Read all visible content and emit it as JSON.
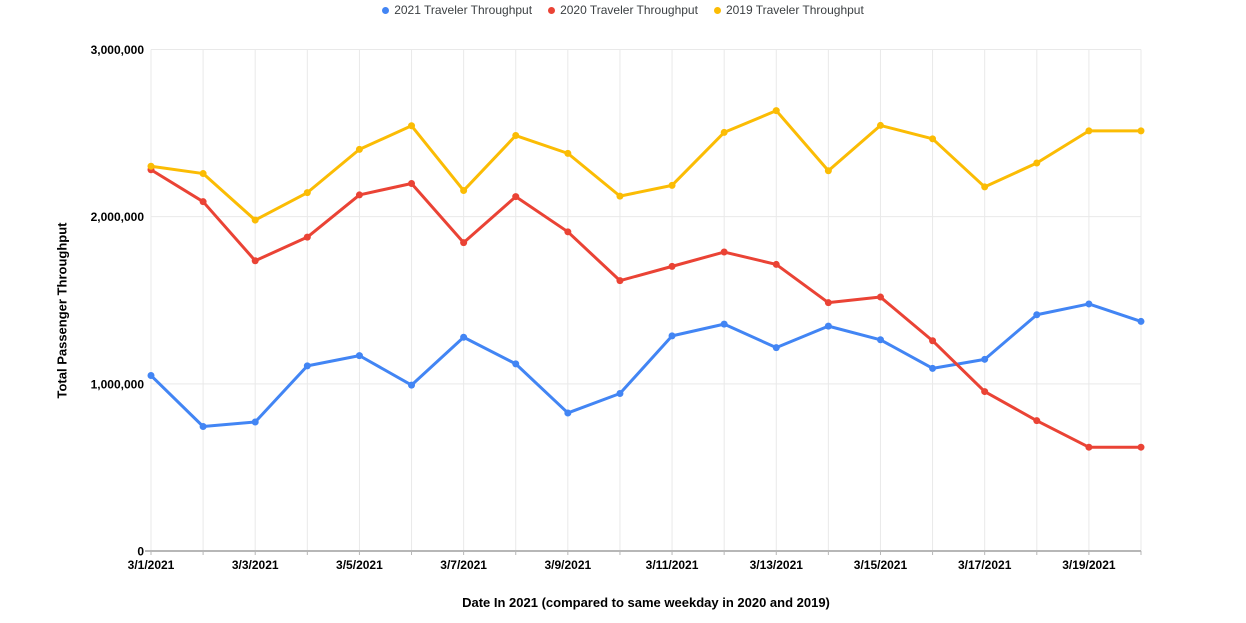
{
  "chart_data": {
    "type": "line",
    "title": "",
    "xlabel": "Date In 2021 (compared to same weekday in 2020 and 2019)",
    "ylabel": "Total Passenger Throughput",
    "x": [
      "3/1/2021",
      "3/2/2021",
      "3/3/2021",
      "3/4/2021",
      "3/5/2021",
      "3/6/2021",
      "3/7/2021",
      "3/8/2021",
      "3/9/2021",
      "3/10/2021",
      "3/11/2021",
      "3/12/2021",
      "3/13/2021",
      "3/14/2021",
      "3/15/2021",
      "3/16/2021",
      "3/17/2021",
      "3/18/2021",
      "3/19/2021",
      "3/20/2021"
    ],
    "x_tick_labels": [
      "3/1/2021",
      "3/3/2021",
      "3/5/2021",
      "3/7/2021",
      "3/9/2021",
      "3/11/2021",
      "3/13/2021",
      "3/15/2021",
      "3/17/2021",
      "3/19/2021"
    ],
    "x_tick_step": 2,
    "y_ticks": [
      0,
      1000000,
      2000000,
      3000000
    ],
    "y_tick_labels": [
      "0",
      "1,000,000",
      "2,000,000",
      "3,000,000"
    ],
    "ylim": [
      0,
      3000000
    ],
    "grid": true,
    "legend_position": "top",
    "series": [
      {
        "name": "2021 Traveler Throughput",
        "color": "#4285F4",
        "values": [
          1049692,
          744812,
          771882,
          1107534,
          1168734,
          992406,
          1278557,
          1119303,
          825745,
          942333,
          1286894,
          1357111,
          1216469,
          1345284,
          1263620,
          1092548,
          1146539,
          1413141,
          1477841,
          1373259
        ]
      },
      {
        "name": "2020 Traveler Throughput",
        "color": "#EA4335",
        "values": [
          2280522,
          2089641,
          1736393,
          1877401,
          2130015,
          2198517,
          1844811,
          2119867,
          1909363,
          1617220,
          1702686,
          1788456,
          1714372,
          1485553,
          1519192,
          1257823,
          953699,
          779631,
          620883,
          620883
        ]
      },
      {
        "name": "2019 Traveler Throughput",
        "color": "#FBBC04",
        "values": [
          2301439,
          2257920,
          1979558,
          2143619,
          2402692,
          2543689,
          2156262,
          2485430,
          2378673,
          2122898,
          2187298,
          2503924,
          2634215,
          2274658,
          2545742,
          2465709,
          2177929,
          2320885,
          2513231,
          2513231
        ]
      }
    ],
    "colors": {
      "gridline": "#E9E9E9",
      "axis_line": "#B7B7B7",
      "tick_text": "#000000",
      "legend_text": "#3C4043"
    }
  }
}
